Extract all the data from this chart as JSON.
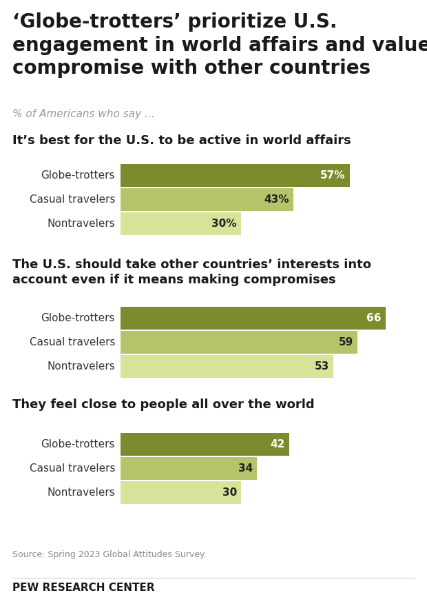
{
  "title": "‘Globe-trotters’ prioritize U.S.\nengagement in world affairs and value\ncompromise with other countries",
  "subtitle": "% of Americans who say ...",
  "sections": [
    {
      "heading": "It’s best for the U.S. to be active in world affairs",
      "categories": [
        "Globe-trotters",
        "Casual travelers",
        "Nontravelers"
      ],
      "values": [
        57,
        43,
        30
      ],
      "labels": [
        "57%",
        "43%",
        "30%"
      ],
      "label_color": [
        "white",
        "#222222",
        "#222222"
      ]
    },
    {
      "heading": "The U.S. should take other countries’ interests into\naccount even if it means making compromises",
      "categories": [
        "Globe-trotters",
        "Casual travelers",
        "Nontravelers"
      ],
      "values": [
        66,
        59,
        53
      ],
      "labels": [
        "66",
        "59",
        "53"
      ],
      "label_color": [
        "white",
        "#222222",
        "#222222"
      ]
    },
    {
      "heading": "They feel close to people all over the world",
      "categories": [
        "Globe-trotters",
        "Casual travelers",
        "Nontravelers"
      ],
      "values": [
        42,
        34,
        30
      ],
      "labels": [
        "42",
        "34",
        "30"
      ],
      "label_color": [
        "white",
        "#222222",
        "#222222"
      ]
    }
  ],
  "bar_colors": [
    "#7a8c2e",
    "#b5c468",
    "#d6e49a"
  ],
  "source": "Source: Spring 2023 Global Attitudes Survey.",
  "footer": "PEW RESEARCH CENTER",
  "xlim": [
    0,
    72
  ],
  "background_color": "#ffffff",
  "title_fontsize": 20,
  "subtitle_fontsize": 11,
  "heading_fontsize": 13,
  "label_fontsize": 11,
  "cat_fontsize": 11,
  "source_fontsize": 9,
  "footer_fontsize": 11
}
